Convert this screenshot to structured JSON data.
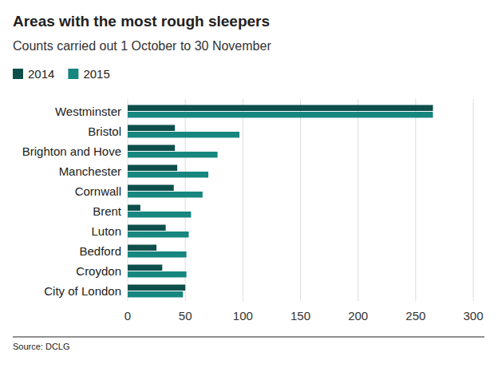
{
  "chart_data": {
    "type": "bar",
    "orientation": "horizontal",
    "title": "Areas with the most rough sleepers",
    "subtitle": "Counts carried out 1 October to 30 November",
    "source": "Source: DCLG",
    "categories": [
      "Westminster",
      "Bristol",
      "Brighton and Hove",
      "Manchester",
      "Cornwall",
      "Brent",
      "Luton",
      "Bedford",
      "Croydon",
      "City of London"
    ],
    "series": [
      {
        "name": "2014",
        "color": "#0e4f4c",
        "values": [
          265,
          41,
          41,
          43,
          40,
          11,
          33,
          25,
          30,
          50
        ]
      },
      {
        "name": "2015",
        "color": "#16867e",
        "values": [
          265,
          97,
          78,
          70,
          65,
          55,
          53,
          51,
          51,
          48
        ]
      }
    ],
    "xlim": [
      0,
      300
    ],
    "xticks": [
      0,
      50,
      100,
      150,
      200,
      250,
      300
    ],
    "grid": true,
    "legend": "top-left"
  }
}
